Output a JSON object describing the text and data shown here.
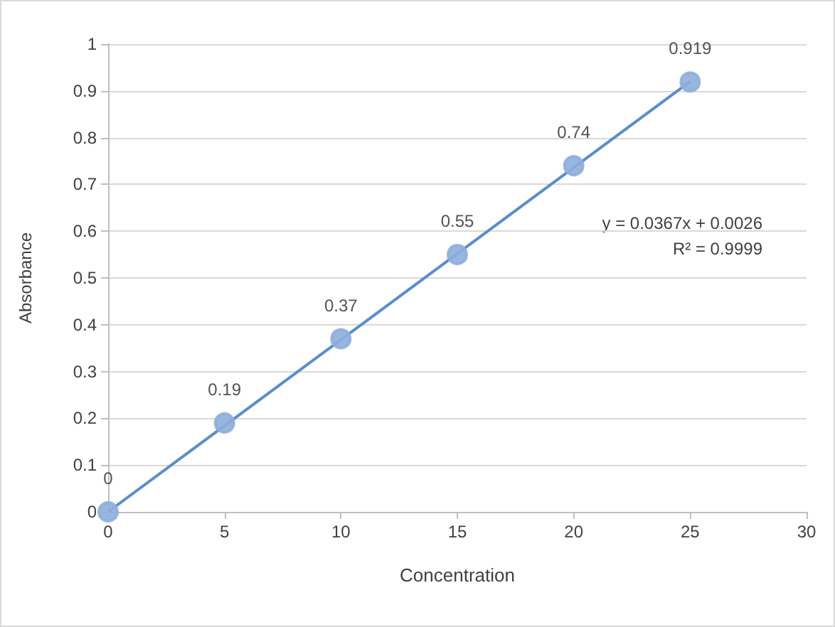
{
  "chart_data": {
    "type": "scatter",
    "xlabel": "Concentration",
    "ylabel": "Absorbance",
    "series": [
      {
        "color": "#8eaedc",
        "x": [
          0,
          5,
          10,
          15,
          20,
          25
        ],
        "values": [
          0,
          0.19,
          0.37,
          0.55,
          0.74,
          0.919
        ],
        "data_labels": true,
        "marker": "circle"
      },
      {
        "type": "line",
        "color": "#5b8dc9",
        "x": [
          0,
          25
        ],
        "values": [
          0,
          0.92
        ],
        "marker": "none",
        "line_style": "solid"
      }
    ],
    "xlim": [
      0,
      30
    ],
    "xticks": [
      0,
      5,
      10,
      15,
      20,
      25,
      30
    ],
    "ylim": [
      0,
      1
    ],
    "yticks": [
      0,
      0.1,
      0.2,
      0.3,
      0.4,
      0.5,
      0.6,
      0.7,
      0.8,
      0.9,
      1
    ],
    "grid": "y",
    "annotations": [
      "y = 0.0367x + 0.0026",
      "R² = 0.9999"
    ]
  }
}
